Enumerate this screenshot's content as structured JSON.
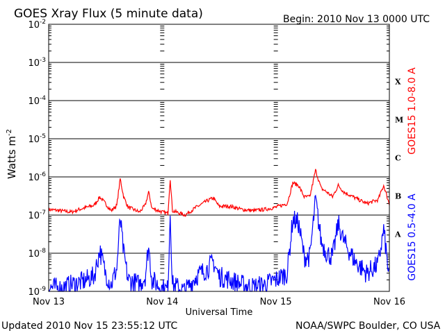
{
  "chart_data": {
    "type": "line",
    "title": "GOES Xray Flux (5 minute data)",
    "begin_label": "Begin:  2010 Nov 13 0000 UTC",
    "ylabel_main": "Watts m",
    "ylabel_sup": "-2",
    "xlabel": "Universal Time",
    "y_scale": "log",
    "ylim": [
      1e-09,
      0.01
    ],
    "y_ticks": [
      {
        "base": "10",
        "exp": "-9",
        "value": 1e-09
      },
      {
        "base": "10",
        "exp": "-8",
        "value": 1e-08
      },
      {
        "base": "10",
        "exp": "-7",
        "value": 1e-07
      },
      {
        "base": "10",
        "exp": "-6",
        "value": 1e-06
      },
      {
        "base": "10",
        "exp": "-5",
        "value": 1e-05
      },
      {
        "base": "10",
        "exp": "-4",
        "value": 0.0001
      },
      {
        "base": "10",
        "exp": "-3",
        "value": 0.001
      },
      {
        "base": "10",
        "exp": "-2",
        "value": 0.01
      }
    ],
    "x_ticks": [
      {
        "label": "Nov 13",
        "day": 0
      },
      {
        "label": "Nov 14",
        "day": 1
      },
      {
        "label": "Nov 15",
        "day": 2
      },
      {
        "label": "Nov 16",
        "day": 3
      }
    ],
    "xlim_days": [
      0,
      3
    ],
    "flare_classes": [
      {
        "label": "A",
        "value": 3.16e-08
      },
      {
        "label": "B",
        "value": 3.16e-07
      },
      {
        "label": "C",
        "value": 3.16e-06
      },
      {
        "label": "M",
        "value": 3.16e-05
      },
      {
        "label": "X",
        "value": 0.000316
      }
    ],
    "grid": true,
    "series": [
      {
        "name": "GOES15 1.0-8.0 A",
        "color": "#ff0000",
        "values": [
          [
            0.0,
            1.4e-07
          ],
          [
            0.1,
            1.3e-07
          ],
          [
            0.2,
            1.2e-07
          ],
          [
            0.3,
            1.5e-07
          ],
          [
            0.4,
            1.8e-07
          ],
          [
            0.45,
            3e-07
          ],
          [
            0.5,
            2e-07
          ],
          [
            0.55,
            1.3e-07
          ],
          [
            0.6,
            1.8e-07
          ],
          [
            0.63,
            9e-07
          ],
          [
            0.66,
            3e-07
          ],
          [
            0.7,
            1.6e-07
          ],
          [
            0.8,
            1.2e-07
          ],
          [
            0.85,
            1.8e-07
          ],
          [
            0.88,
            4e-07
          ],
          [
            0.91,
            1.5e-07
          ],
          [
            1.0,
            1.2e-07
          ],
          [
            1.05,
            1.1e-07
          ],
          [
            1.07,
            9e-07
          ],
          [
            1.09,
            1.3e-07
          ],
          [
            1.2,
            1e-07
          ],
          [
            1.3,
            1.6e-07
          ],
          [
            1.4,
            2.4e-07
          ],
          [
            1.45,
            2.8e-07
          ],
          [
            1.5,
            1.7e-07
          ],
          [
            1.6,
            1.7e-07
          ],
          [
            1.7,
            1.4e-07
          ],
          [
            1.8,
            1.3e-07
          ],
          [
            1.9,
            1.4e-07
          ],
          [
            2.0,
            1.6e-07
          ],
          [
            2.1,
            2e-07
          ],
          [
            2.15,
            7e-07
          ],
          [
            2.2,
            6e-07
          ],
          [
            2.25,
            3e-07
          ],
          [
            2.3,
            3e-07
          ],
          [
            2.35,
            1.5e-06
          ],
          [
            2.4,
            5e-07
          ],
          [
            2.45,
            4e-07
          ],
          [
            2.5,
            3e-07
          ],
          [
            2.55,
            6e-07
          ],
          [
            2.6,
            4e-07
          ],
          [
            2.7,
            2.8e-07
          ],
          [
            2.8,
            2e-07
          ],
          [
            2.9,
            2.5e-07
          ],
          [
            2.95,
            6e-07
          ],
          [
            3.0,
            1.9e-07
          ]
        ]
      },
      {
        "name": "GOES15 0.5-4.0 A",
        "color": "#0000ff",
        "values": [
          [
            0.0,
            1.3e-09
          ],
          [
            0.1,
            1.2e-09
          ],
          [
            0.2,
            1.5e-09
          ],
          [
            0.3,
            1.8e-09
          ],
          [
            0.4,
            2.5e-09
          ],
          [
            0.45,
            1.2e-08
          ],
          [
            0.5,
            3e-09
          ],
          [
            0.55,
            1.5e-09
          ],
          [
            0.6,
            4e-09
          ],
          [
            0.63,
            8e-08
          ],
          [
            0.66,
            1e-08
          ],
          [
            0.7,
            2e-09
          ],
          [
            0.8,
            1.5e-09
          ],
          [
            0.85,
            2.5e-09
          ],
          [
            0.88,
            1.5e-08
          ],
          [
            0.91,
            2e-09
          ],
          [
            1.0,
            1.2e-09
          ],
          [
            1.05,
            1.1e-09
          ],
          [
            1.07,
            1.2e-07
          ],
          [
            1.09,
            1.5e-09
          ],
          [
            1.2,
            1e-09
          ],
          [
            1.3,
            2.5e-09
          ],
          [
            1.4,
            4e-09
          ],
          [
            1.45,
            6e-09
          ],
          [
            1.5,
            2.5e-09
          ],
          [
            1.6,
            2e-09
          ],
          [
            1.7,
            1.5e-09
          ],
          [
            1.8,
            1.3e-09
          ],
          [
            1.9,
            1.5e-09
          ],
          [
            2.0,
            2e-09
          ],
          [
            2.1,
            3e-09
          ],
          [
            2.15,
            8e-08
          ],
          [
            2.2,
            6e-08
          ],
          [
            2.25,
            8e-09
          ],
          [
            2.3,
            8e-09
          ],
          [
            2.35,
            2.5e-07
          ],
          [
            2.4,
            2e-08
          ],
          [
            2.45,
            1e-08
          ],
          [
            2.5,
            8e-09
          ],
          [
            2.55,
            6e-08
          ],
          [
            2.6,
            2e-08
          ],
          [
            2.7,
            6e-09
          ],
          [
            2.8,
            3e-09
          ],
          [
            2.9,
            5e-09
          ],
          [
            2.95,
            4e-08
          ],
          [
            3.0,
            2e-09
          ]
        ]
      }
    ]
  },
  "footer": {
    "updated": "Updated 2010 Nov 15 23:55:12 UTC",
    "credit": "NOAA/SWPC Boulder, CO USA"
  }
}
